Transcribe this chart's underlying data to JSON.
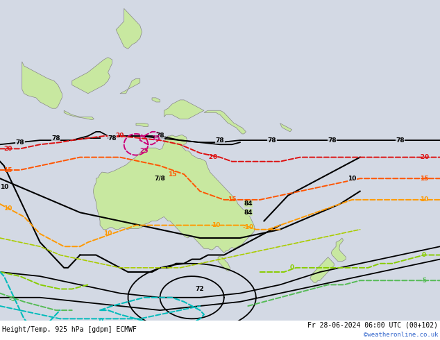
{
  "title_left": "Height/Temp. 925 hPa [gdpm] ECMWF",
  "title_right": "Fr 28-06-2024 06:00 UTC (00+102)",
  "copyright": "©weatheronline.co.uk",
  "bg_color": "#d3d9e4",
  "land_color": "#c8e8a0",
  "ocean_color": "#d3d9e4",
  "coast_color": "#888888",
  "fig_width": 6.34,
  "fig_height": 4.9,
  "dpi": 100,
  "lon_min": 90,
  "lon_max": 200,
  "lat_min": -60,
  "lat_max": 20
}
